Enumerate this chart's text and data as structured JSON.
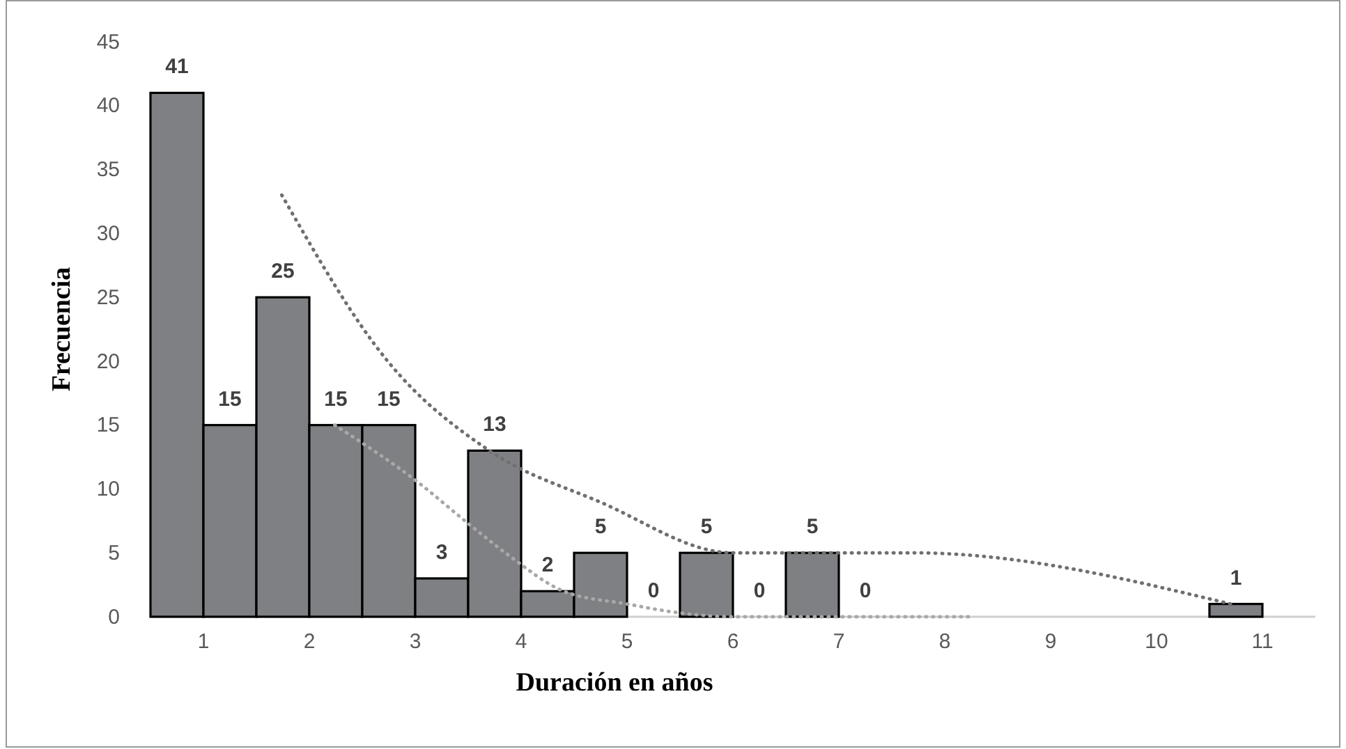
{
  "chart_data": {
    "type": "histogram",
    "xlabel": "Duración en años",
    "ylabel": "Frecuencia",
    "bins": [
      0.5,
      1,
      1.5,
      2,
      2.5,
      3,
      3.5,
      4,
      4.5,
      5,
      5.5,
      6,
      6.5,
      7,
      7.5,
      8,
      8.5,
      9,
      9.5,
      10,
      10.5,
      11
    ],
    "values": [
      41,
      15,
      25,
      15,
      15,
      3,
      13,
      2,
      5,
      0,
      5,
      0,
      5,
      0,
      0,
      0,
      0,
      0,
      0,
      0,
      1
    ],
    "value_labels": [
      "41",
      "15",
      "25",
      "15",
      "15",
      "3",
      "13",
      "2",
      "5",
      "0",
      "5",
      "0",
      "5",
      "0",
      null,
      null,
      null,
      null,
      null,
      null,
      "1"
    ],
    "color": "#7f8083",
    "series": [
      {
        "type": "line",
        "color": "#6f6f6f",
        "line_style": "dotted",
        "x": [
          1.74,
          2.74,
          3.7,
          4.74,
          6.0,
          7.7,
          10.7
        ],
        "values": [
          33,
          20,
          13,
          9,
          5,
          5,
          1
        ]
      },
      {
        "type": "line",
        "color": "#a8a8a8",
        "line_style": "dotted",
        "x": [
          2.24,
          3.03,
          3.5,
          3.9,
          4.4,
          5.0,
          5.5,
          6.0,
          7.0,
          8.25
        ],
        "values": [
          15,
          10.5,
          7.3,
          4.7,
          2,
          1,
          0.3,
          0,
          0,
          0
        ]
      }
    ],
    "xlim": [
      0.5,
      11.5
    ],
    "xticks": [
      1,
      2,
      3,
      4,
      5,
      6,
      7,
      8,
      9,
      10,
      11
    ],
    "ylim": [
      0,
      45
    ],
    "yticks": [
      0,
      5,
      10,
      15,
      20,
      25,
      30,
      35,
      40,
      45
    ],
    "grid": false,
    "marker": "none"
  }
}
